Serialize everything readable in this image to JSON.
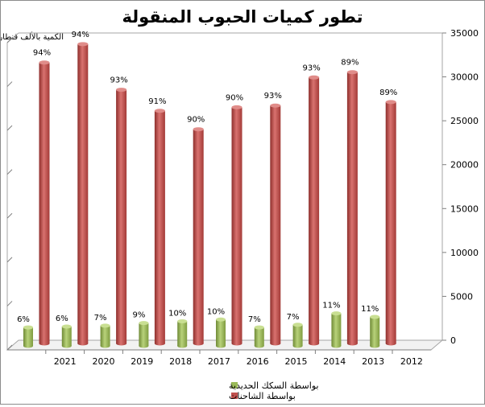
{
  "chart_data": {
    "type": "bar",
    "title": "تطور كميات الحبوب المنقولة",
    "ylabel": "الكمية بالألف قنطار",
    "xlabel": "",
    "categories": [
      "2021",
      "2020",
      "2019",
      "2018",
      "2017",
      "2016",
      "2015",
      "2014",
      "2013",
      "2012"
    ],
    "ylim": [
      0,
      35000
    ],
    "yticks": [
      "0",
      "5000",
      "10000",
      "15000",
      "20000",
      "25000",
      "30000",
      "35000"
    ],
    "y_axis_side": "right",
    "grid": false,
    "legend_position": "bottom",
    "series": [
      {
        "name": "بواسطة الشاحنات",
        "color": "#c0504d",
        "values": [
          32000,
          34100,
          28900,
          26500,
          24400,
          26900,
          27100,
          30300,
          30900,
          27500
        ],
        "labels": [
          "94%",
          "94%",
          "93%",
          "91%",
          "90%",
          "90%",
          "93%",
          "93%",
          "89%",
          "89%"
        ]
      },
      {
        "name": "بواسطة السكك الحديدية",
        "color": "#9bbb59",
        "values": [
          2100,
          2200,
          2300,
          2600,
          2800,
          3000,
          2100,
          2400,
          3700,
          3300
        ],
        "labels": [
          "6%",
          "6%",
          "7%",
          "9%",
          "10%",
          "10%",
          "7%",
          "7%",
          "11%",
          "11%"
        ]
      }
    ]
  }
}
